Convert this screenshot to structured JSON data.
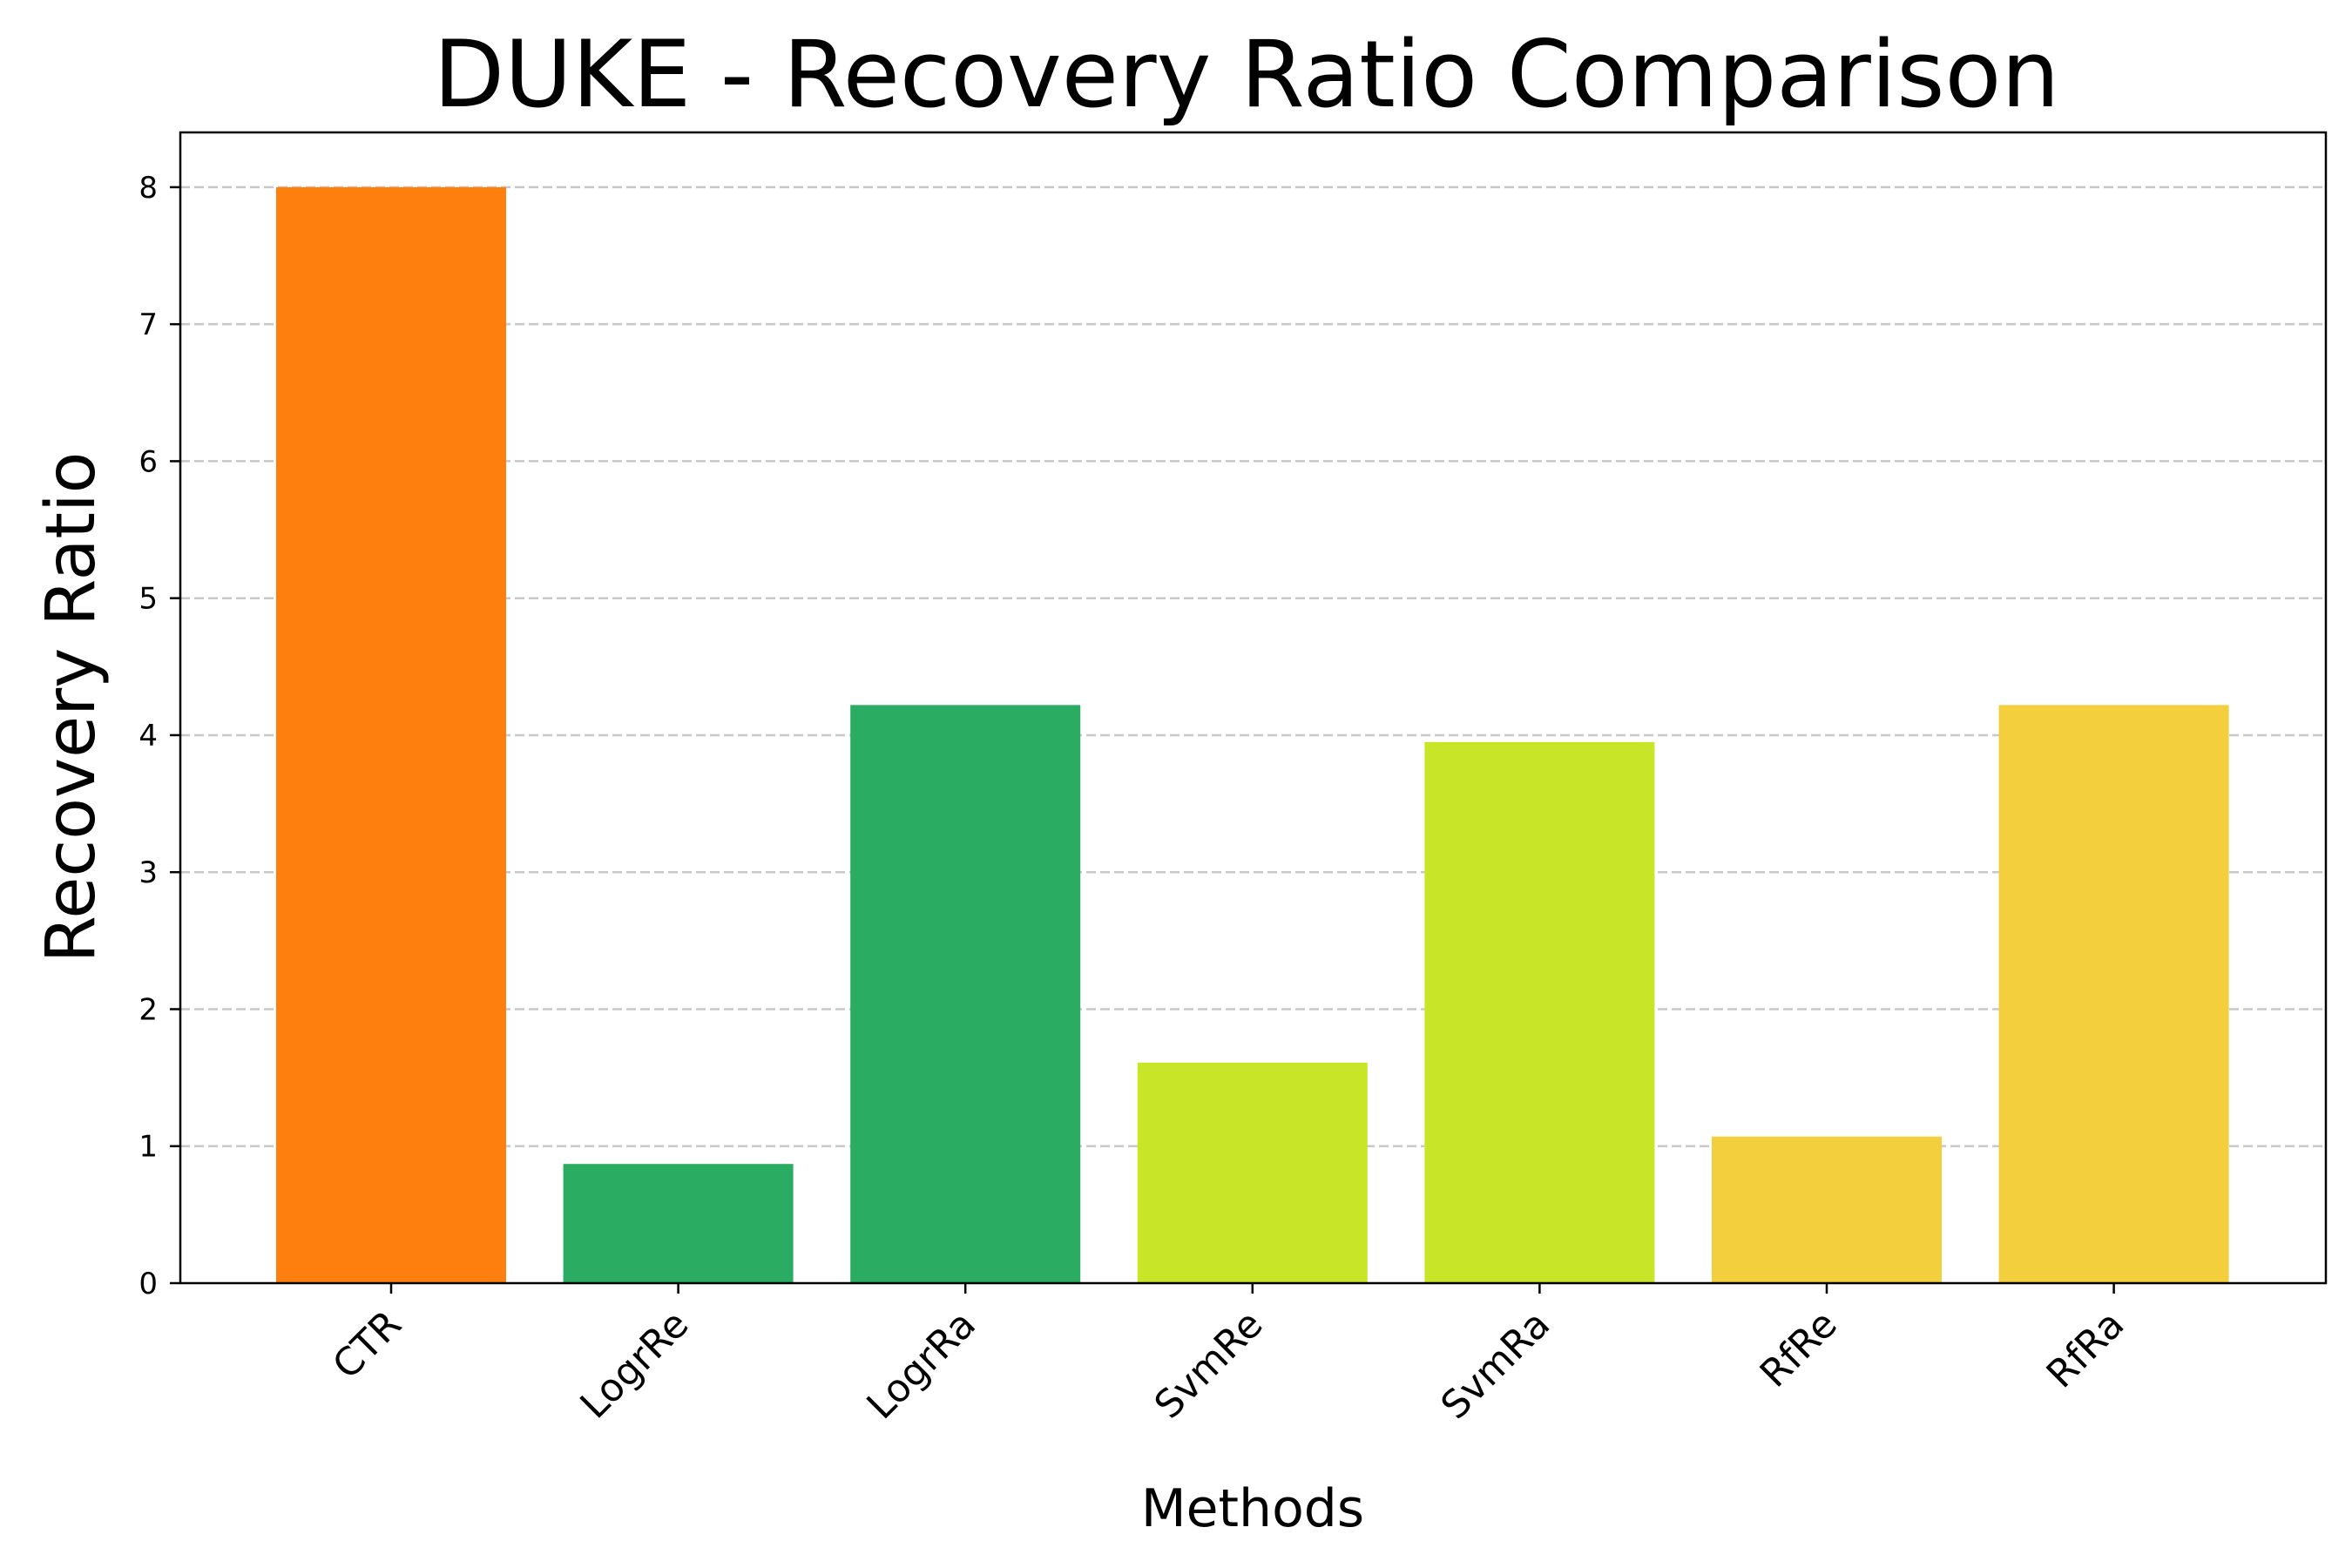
{
  "chart_data": {
    "type": "bar",
    "title": "DUKE - Recovery Ratio Comparison",
    "xlabel": "Methods",
    "ylabel": "Recovery Ratio",
    "categories": [
      "CTR",
      "LogrRe",
      "LogrRa",
      "SvmRe",
      "SvmRa",
      "RfRe",
      "RfRa"
    ],
    "values": [
      8.0,
      0.87,
      4.22,
      1.61,
      3.95,
      1.07,
      4.22
    ],
    "colors": [
      "#ff7f0e",
      "#2aad62",
      "#2aad62",
      "#c8e527",
      "#c8e527",
      "#f3cf3e",
      "#f3cf3e"
    ],
    "ylim": [
      0,
      8.4
    ],
    "yticks": [
      "0",
      "1",
      "2",
      "3",
      "4",
      "5",
      "6",
      "7",
      "8"
    ],
    "grid": "y-dashed",
    "legend": "none"
  }
}
